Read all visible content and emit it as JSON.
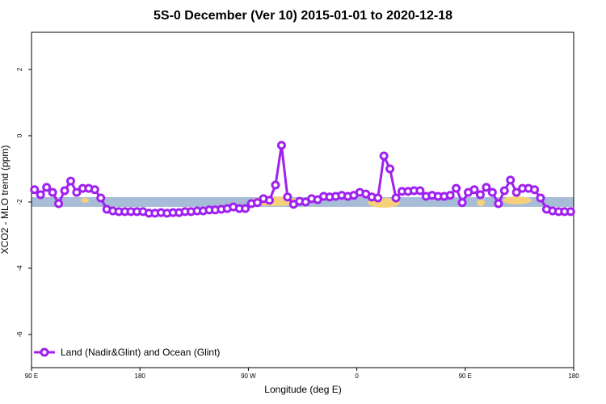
{
  "chart_data": {
    "type": "line",
    "title": "5S-0 December (Ver 10)   2015-01-01 to 2020-12-18",
    "x_label": "Longitude (deg E)",
    "y_label": "XCO2 - MLO trend (ppm)",
    "x": [
      92.5,
      97.5,
      102.5,
      107.5,
      112.5,
      117.5,
      122.5,
      127.5,
      132.5,
      137.5,
      142.5,
      147.5,
      152.5,
      157.5,
      162.5,
      167.5,
      172.5,
      177.5,
      182.5,
      187.5,
      192.5,
      197.5,
      202.5,
      207.5,
      212.5,
      217.5,
      222.5,
      227.5,
      232.5,
      237.5,
      242.5,
      247.5,
      252.5,
      257.5,
      262.5,
      267.5,
      272.5,
      277.5,
      282.5,
      287.5,
      292.5,
      297.5,
      302.5,
      307.5,
      312.5,
      317.5,
      322.5,
      327.5,
      332.5,
      337.5,
      342.5,
      347.5,
      352.5,
      357.5,
      362.5,
      367.5,
      372.5,
      377.5,
      382.5,
      387.5,
      392.5,
      397.5,
      402.5,
      407.5,
      412.5,
      417.5,
      422.5,
      427.5,
      432.5,
      437.5,
      442.5,
      447.5,
      452.5,
      457.5,
      462.5,
      467.5,
      472.5,
      477.5,
      482.5,
      487.5,
      492.5,
      497.5,
      502.5,
      507.5,
      512.5,
      517.5,
      522.5,
      527.5,
      532.5,
      537.5
    ],
    "series": [
      {
        "name": "Land (Nadir&Glint) and Ocean (Glint)",
        "color": "#a020f0",
        "values": [
          -1.63,
          -1.78,
          -1.56,
          -1.71,
          -2.05,
          -1.66,
          -1.37,
          -1.71,
          -1.59,
          -1.59,
          -1.63,
          -1.88,
          -2.22,
          -2.27,
          -2.29,
          -2.29,
          -2.29,
          -2.29,
          -2.29,
          -2.34,
          -2.34,
          -2.32,
          -2.34,
          -2.32,
          -2.32,
          -2.29,
          -2.29,
          -2.27,
          -2.27,
          -2.24,
          -2.24,
          -2.22,
          -2.2,
          -2.15,
          -2.2,
          -2.2,
          -2.05,
          -2.02,
          -1.9,
          -1.95,
          -1.49,
          -0.29,
          -1.85,
          -2.07,
          -1.98,
          -2.0,
          -1.9,
          -1.93,
          -1.83,
          -1.85,
          -1.83,
          -1.8,
          -1.83,
          -1.8,
          -1.71,
          -1.76,
          -1.85,
          -1.88,
          -0.61,
          -1.0,
          -1.88,
          -1.68,
          -1.68,
          -1.66,
          -1.66,
          -1.83,
          -1.8,
          -1.83,
          -1.83,
          -1.8,
          -1.59,
          -2.02,
          -1.71,
          -1.63,
          -1.78,
          -1.56,
          -1.71,
          -2.05,
          -1.66,
          -1.34,
          -1.71,
          -1.59,
          -1.59,
          -1.63,
          -1.88,
          -2.22,
          -2.27,
          -2.29,
          -2.29,
          -2.29
        ]
      }
    ],
    "xlim": [
      90,
      540
    ],
    "xticks": [
      {
        "value": 90,
        "label": "90 E"
      },
      {
        "value": 180,
        "label": "180"
      },
      {
        "value": 270,
        "label": "90 W"
      },
      {
        "value": 360,
        "label": "0"
      },
      {
        "value": 450,
        "label": "90 E"
      },
      {
        "value": 540,
        "label": "180"
      }
    ],
    "ylim": [
      -7.0,
      3.12
    ],
    "yticks": [
      2,
      0,
      -2,
      -4,
      -6
    ],
    "legend": "bottom-left"
  }
}
